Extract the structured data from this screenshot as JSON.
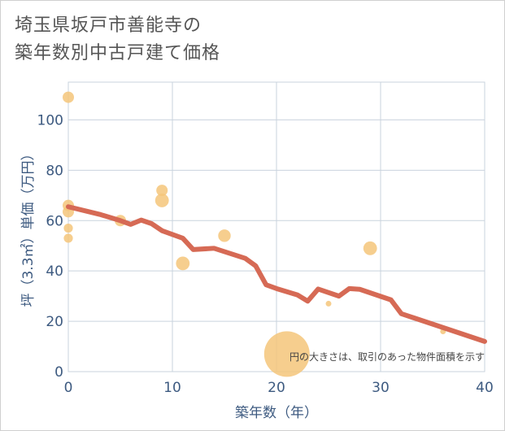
{
  "title_lines": [
    "埼玉県坂戸市善能寺の",
    "築年数別中古戸建て価格"
  ],
  "chart_data": {
    "type": "scatter",
    "xlabel": "築年数（年）",
    "ylabel": "坪（3.3㎡）単価（万円）",
    "xlim": [
      0,
      40
    ],
    "ylim": [
      0,
      115
    ],
    "x_ticks": [
      0,
      10,
      20,
      30,
      40
    ],
    "y_ticks": [
      0,
      20,
      40,
      60,
      80,
      100
    ],
    "grid": true,
    "annotation": "円の大きさは、取引のあった物件面積を示す",
    "colors": {
      "bubble": "#f5c57a",
      "line": "#d66a55",
      "grid": "#c9d3de",
      "text": "#3d5a80"
    },
    "points": [
      {
        "x": 0,
        "y": 109,
        "size": 1.0
      },
      {
        "x": 0,
        "y": 66,
        "size": 1.0
      },
      {
        "x": 0,
        "y": 63.5,
        "size": 1.0
      },
      {
        "x": 0,
        "y": 57,
        "size": 0.8
      },
      {
        "x": 0,
        "y": 53,
        "size": 0.8
      },
      {
        "x": 5,
        "y": 60,
        "size": 1.0
      },
      {
        "x": 9,
        "y": 72,
        "size": 1.0
      },
      {
        "x": 9,
        "y": 68,
        "size": 1.2
      },
      {
        "x": 11,
        "y": 43,
        "size": 1.2
      },
      {
        "x": 15,
        "y": 54,
        "size": 1.1
      },
      {
        "x": 21,
        "y": 7,
        "size": 4.0
      },
      {
        "x": 25,
        "y": 27,
        "size": 0.5
      },
      {
        "x": 29,
        "y": 49,
        "size": 1.2
      },
      {
        "x": 36,
        "y": 16,
        "size": 0.5
      }
    ],
    "trend": [
      {
        "x": 0,
        "y": 65.5
      },
      {
        "x": 3,
        "y": 62.5
      },
      {
        "x": 5,
        "y": 60
      },
      {
        "x": 6,
        "y": 58.5
      },
      {
        "x": 7,
        "y": 60.2
      },
      {
        "x": 8,
        "y": 58.8
      },
      {
        "x": 9,
        "y": 56
      },
      {
        "x": 11,
        "y": 53
      },
      {
        "x": 12,
        "y": 48.5
      },
      {
        "x": 14,
        "y": 49
      },
      {
        "x": 17,
        "y": 45
      },
      {
        "x": 18,
        "y": 42
      },
      {
        "x": 19,
        "y": 34.5
      },
      {
        "x": 20,
        "y": 33
      },
      {
        "x": 22,
        "y": 30.5
      },
      {
        "x": 23,
        "y": 28
      },
      {
        "x": 24,
        "y": 32.8
      },
      {
        "x": 26,
        "y": 30
      },
      {
        "x": 27,
        "y": 33
      },
      {
        "x": 28,
        "y": 32.7
      },
      {
        "x": 31,
        "y": 28.5
      },
      {
        "x": 32,
        "y": 23
      },
      {
        "x": 40,
        "y": 12
      }
    ]
  }
}
